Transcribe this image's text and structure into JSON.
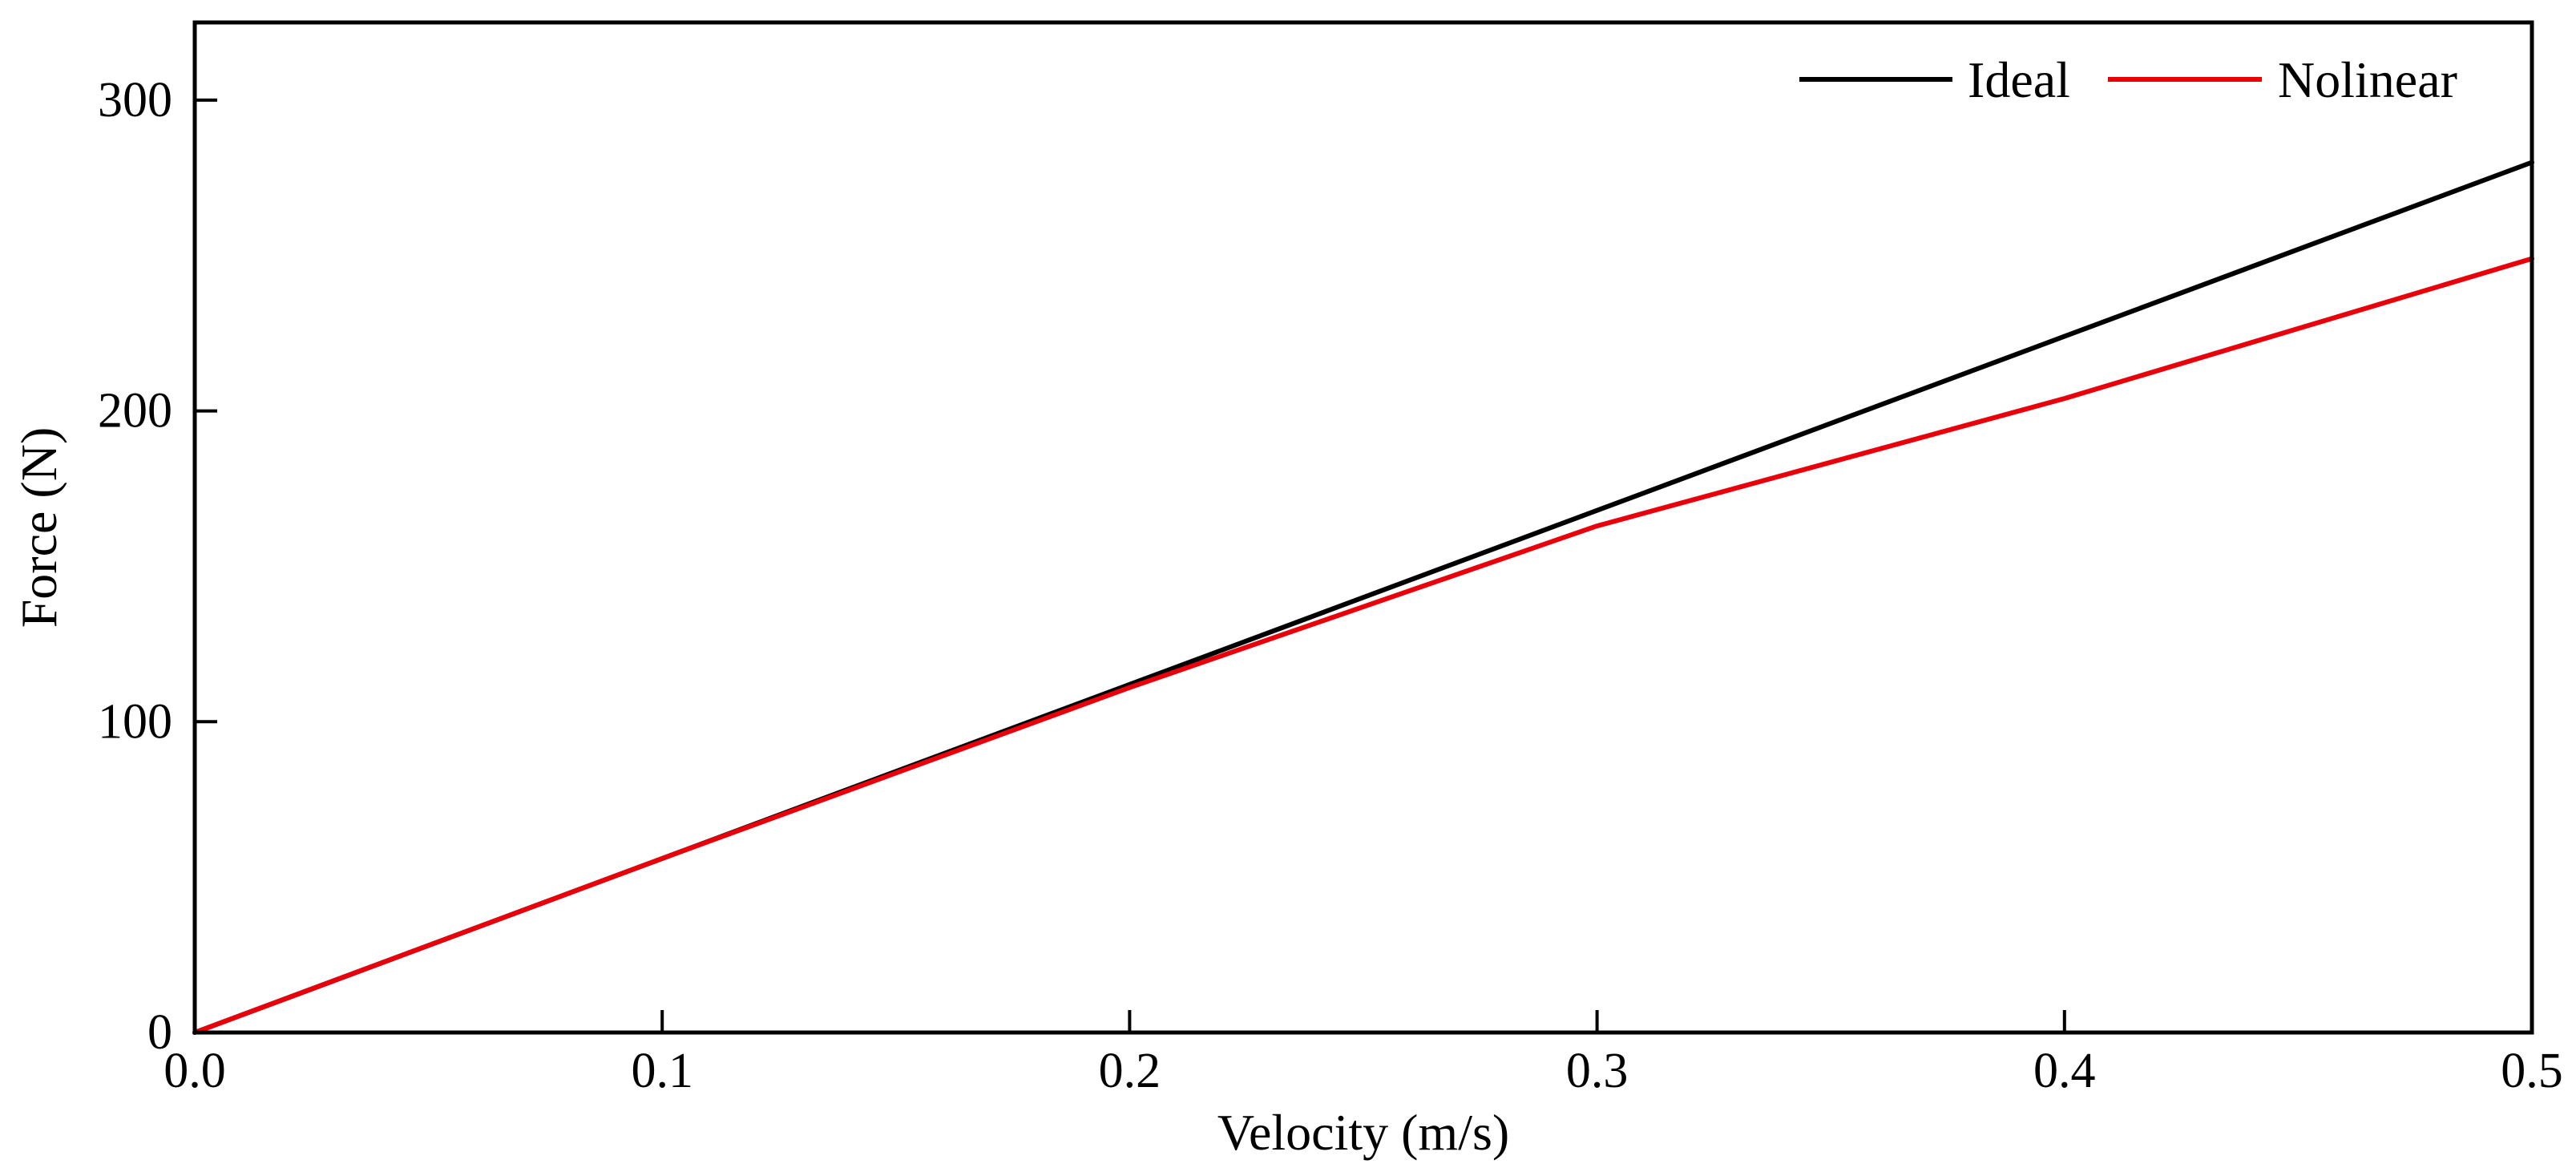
{
  "chart_data": {
    "type": "line",
    "title": "",
    "xlabel": "Velocity (m/s)",
    "ylabel": "Force (N)",
    "xlim": [
      0.0,
      0.5
    ],
    "ylim": [
      0,
      325
    ],
    "x_ticks": [
      0.0,
      0.1,
      0.2,
      0.3,
      0.4,
      0.5
    ],
    "x_tick_labels": [
      "0.0",
      "0.1",
      "0.2",
      "0.3",
      "0.4",
      "0.5"
    ],
    "y_ticks": [
      0,
      100,
      200,
      300
    ],
    "y_tick_labels": [
      "0",
      "100",
      "200",
      "300"
    ],
    "grid": false,
    "legend_position": "top-right",
    "series": [
      {
        "name": "Ideal",
        "color": "#000000",
        "x": [
          0.0,
          0.1,
          0.2,
          0.3,
          0.4,
          0.5
        ],
        "y": [
          0,
          56,
          112,
          168,
          224,
          280
        ]
      },
      {
        "name": "Nolinear",
        "color": "#e8000b",
        "x": [
          0.0,
          0.1,
          0.2,
          0.3,
          0.4,
          0.5
        ],
        "y": [
          0,
          56,
          111,
          163,
          204,
          249
        ]
      }
    ]
  }
}
